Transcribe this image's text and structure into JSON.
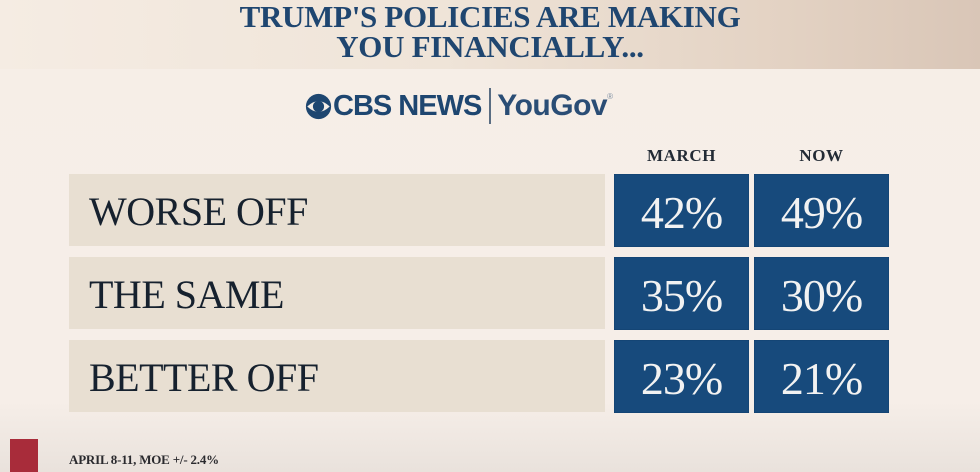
{
  "header": {
    "title_line1": "TRUMP'S POLICIES ARE MAKING",
    "title_line2": "YOU FINANCIALLY..."
  },
  "logo": {
    "cbs": "CBS NEWS",
    "yougov": "YouGov",
    "registered_mark": "®",
    "icon": "cbs-eye-icon"
  },
  "colors": {
    "title": "#1f4670",
    "value_box": "#174a7c",
    "label_box": "#e8dfd2",
    "marker": "#a82c3a"
  },
  "chart_data": {
    "type": "table",
    "title": "TRUMP'S POLICIES ARE MAKING YOU FINANCIALLY...",
    "columns": [
      "MARCH",
      "NOW"
    ],
    "categories": [
      "WORSE OFF",
      "THE SAME",
      "BETTER OFF"
    ],
    "series": [
      {
        "name": "MARCH",
        "values": [
          42,
          35,
          23
        ],
        "labels": [
          "42%",
          "35%",
          "23%"
        ]
      },
      {
        "name": "NOW",
        "values": [
          49,
          30,
          21
        ],
        "labels": [
          "49%",
          "30%",
          "21%"
        ]
      }
    ],
    "unit": "%"
  },
  "footnote": "APRIL 8-11, MOE +/- 2.4%"
}
